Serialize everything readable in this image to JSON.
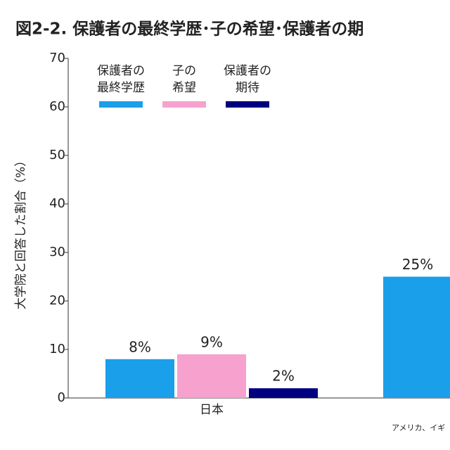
{
  "chart_data": {
    "type": "bar",
    "title": "図2-2. 保護者の最終学歴･子の希望･保護者の期",
    "y_label": "大学院と回答した割合（%）",
    "note": "アメリカ、イギ",
    "categories": [
      "日本",
      null
    ],
    "series": [
      {
        "name": "保護者の\n最終学歴",
        "color": "#1a9fea",
        "values": [
          8,
          25
        ],
        "value_labels": [
          "8%",
          "25%"
        ]
      },
      {
        "name": "子の\n希望",
        "color": "#f7a1cf",
        "values": [
          9,
          null
        ],
        "value_labels": [
          "9%",
          null
        ]
      },
      {
        "name": "保護者の\n期待",
        "color": "#000080",
        "values": [
          2,
          null
        ],
        "value_labels": [
          "2%",
          null
        ]
      }
    ],
    "ylim": [
      0,
      70
    ],
    "yticks": [
      0,
      10,
      20,
      30,
      40,
      50,
      60,
      70
    ],
    "grid": false
  }
}
